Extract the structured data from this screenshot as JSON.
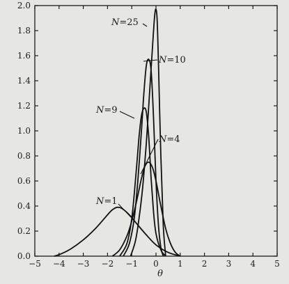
{
  "chart_data": {
    "type": "line",
    "title": "",
    "xlabel": "θ",
    "ylabel": "",
    "xlim": [
      -5,
      5
    ],
    "ylim": [
      0,
      2.0
    ],
    "xticks": [
      -5,
      -4,
      -3,
      -2,
      -1,
      0,
      1,
      2,
      3,
      4,
      5
    ],
    "xtick_labels": [
      "−5",
      "−4",
      "−3",
      "−2",
      "−1",
      "0",
      "1",
      "2",
      "3",
      "4",
      "5"
    ],
    "yticks": [
      0,
      0.2,
      0.4,
      0.6,
      0.8,
      1.0,
      1.2,
      1.4,
      1.6,
      1.8,
      2.0
    ],
    "ytick_labels": [
      "0.0",
      "0.2",
      "0.4",
      "0.6",
      "0.8",
      "1.0",
      "1.2",
      "1.4",
      "1.6",
      "1.8",
      "2.0"
    ],
    "grid": false,
    "legend": "none",
    "series": [
      {
        "label": "N = 1",
        "label_var": "N",
        "label_eq": "=",
        "label_num": "1",
        "x": [
          -4.2,
          -3.9,
          -3.5,
          -3.0,
          -2.5,
          -2.0,
          -1.8,
          -1.6,
          -1.4,
          -1.1,
          -0.8,
          -0.4,
          0.0,
          0.5,
          1.0
        ],
        "y": [
          0.0,
          0.02,
          0.06,
          0.13,
          0.22,
          0.33,
          0.37,
          0.39,
          0.38,
          0.33,
          0.26,
          0.17,
          0.09,
          0.03,
          0.0
        ]
      },
      {
        "label": "N = 4",
        "label_var": "N",
        "label_eq": "=",
        "label_num": "4",
        "x": [
          -1.8,
          -1.5,
          -1.2,
          -1.0,
          -0.8,
          -0.6,
          -0.45,
          -0.3,
          -0.15,
          0.0,
          0.2,
          0.4,
          0.6,
          0.8,
          1.0
        ],
        "y": [
          0.0,
          0.05,
          0.16,
          0.28,
          0.44,
          0.62,
          0.72,
          0.75,
          0.71,
          0.6,
          0.4,
          0.22,
          0.1,
          0.03,
          0.0
        ]
      },
      {
        "label": "N = 9",
        "label_var": "N",
        "label_eq": "=",
        "label_num": "9",
        "x": [
          -1.5,
          -1.2,
          -1.0,
          -0.85,
          -0.7,
          -0.6,
          -0.5,
          -0.4,
          -0.3,
          -0.2,
          -0.1,
          0.0,
          0.2,
          0.4
        ],
        "y": [
          0.0,
          0.1,
          0.3,
          0.6,
          0.95,
          1.12,
          1.18,
          1.15,
          0.95,
          0.62,
          0.35,
          0.18,
          0.05,
          0.0
        ]
      },
      {
        "label": "N = 10",
        "label_var": "N",
        "label_eq": "=",
        "label_num": "10",
        "x": [
          -1.35,
          -1.1,
          -0.9,
          -0.75,
          -0.6,
          -0.5,
          -0.4,
          -0.3,
          -0.2,
          -0.1,
          0.0,
          0.1,
          0.2,
          0.3
        ],
        "y": [
          0.0,
          0.1,
          0.3,
          0.6,
          1.0,
          1.3,
          1.52,
          1.57,
          1.48,
          1.1,
          0.6,
          0.25,
          0.07,
          0.0
        ]
      },
      {
        "label": "N = 25",
        "label_var": "N",
        "label_eq": "=",
        "label_num": "25",
        "x": [
          -1.05,
          -0.85,
          -0.7,
          -0.55,
          -0.4,
          -0.3,
          -0.2,
          -0.1,
          -0.05,
          0.0,
          0.05,
          0.1,
          0.2,
          0.3,
          0.4
        ],
        "y": [
          0.0,
          0.12,
          0.3,
          0.55,
          0.9,
          1.2,
          1.5,
          1.8,
          1.93,
          1.97,
          1.88,
          1.55,
          0.8,
          0.25,
          0.0
        ]
      }
    ]
  }
}
